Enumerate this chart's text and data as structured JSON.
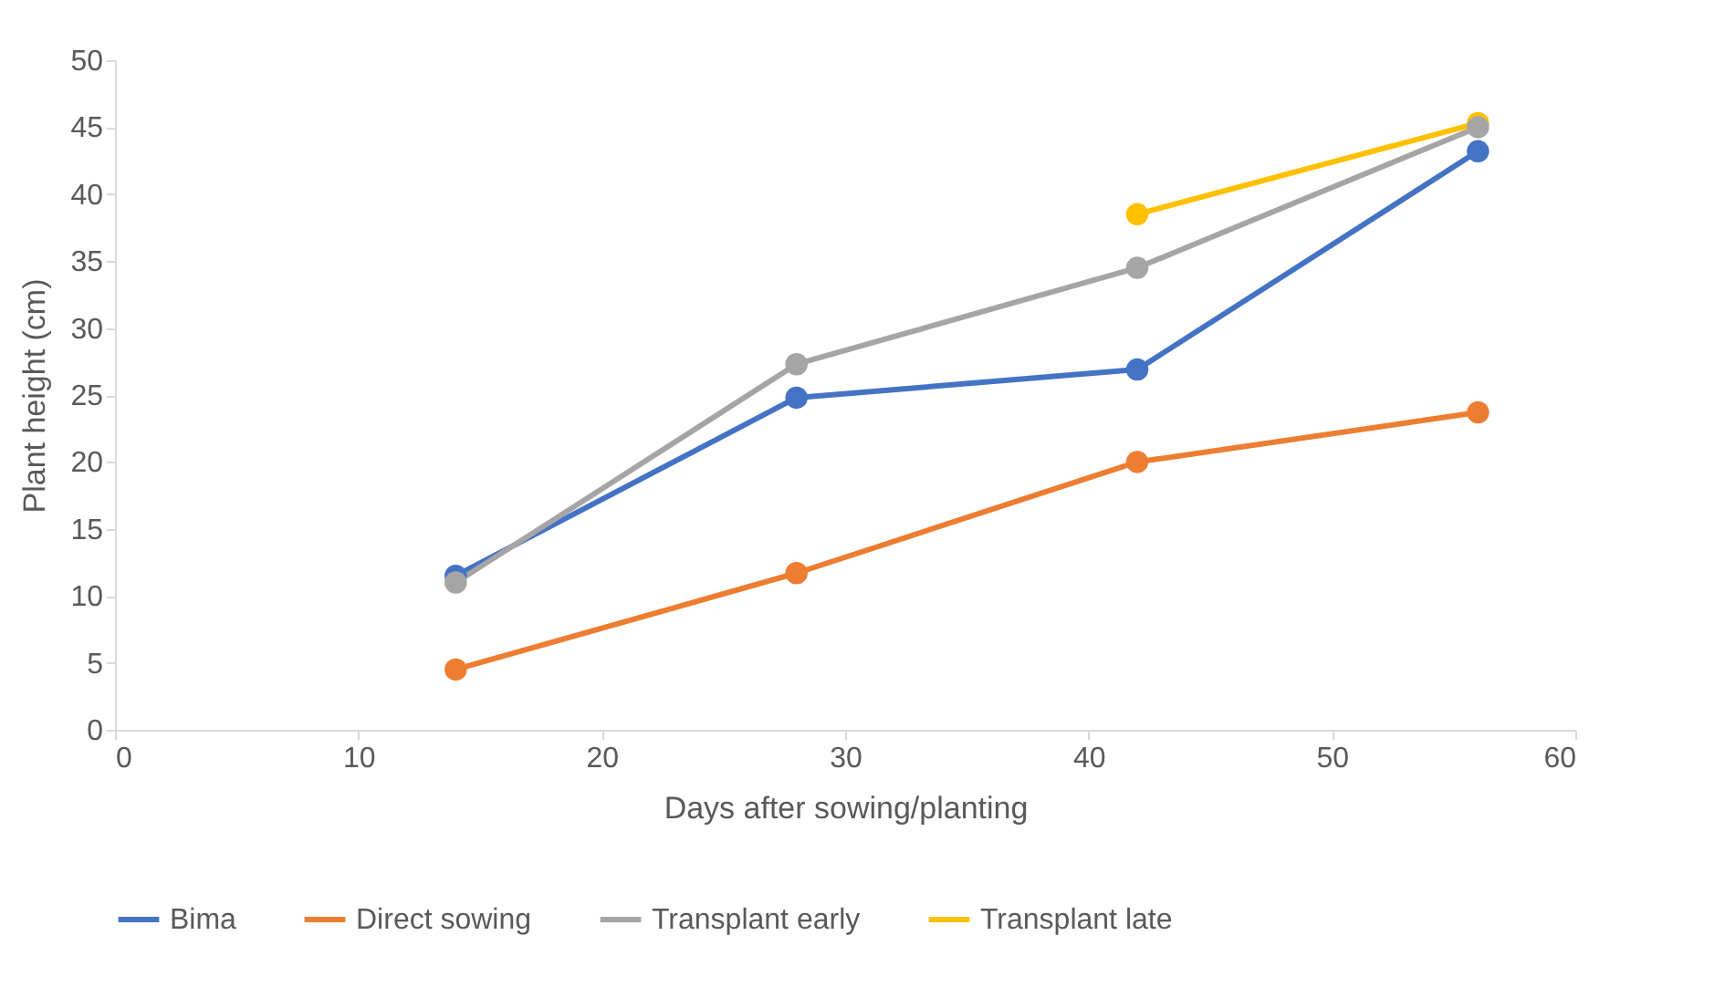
{
  "chart_data": {
    "type": "line",
    "xlabel": "Days after sowing/planting",
    "ylabel": "Plant height (cm)",
    "x": [
      14,
      28,
      42,
      56
    ],
    "series": [
      {
        "name": "Bima",
        "color": "#4472c4",
        "values": [
          11.5,
          24.8,
          26.9,
          43.2
        ]
      },
      {
        "name": "Direct sowing",
        "color": "#ed7d31",
        "values": [
          4.5,
          11.7,
          20.0,
          23.7
        ]
      },
      {
        "name": "Transplant early",
        "color": "#a5a5a5",
        "values": [
          11.0,
          27.3,
          34.5,
          45.0
        ]
      },
      {
        "name": "Transplant late",
        "color": "#ffc000",
        "x": [
          42,
          56
        ],
        "values": [
          38.5,
          45.3
        ]
      }
    ],
    "xlim": [
      0,
      60
    ],
    "xticks": [
      0,
      10,
      20,
      30,
      40,
      50,
      60
    ],
    "ylim": [
      0,
      50
    ],
    "yticks": [
      0,
      5,
      10,
      15,
      20,
      25,
      30,
      35,
      40,
      45,
      50
    ],
    "grid": false,
    "legend": "bottom",
    "marker": "circle",
    "line_style": "solid"
  }
}
